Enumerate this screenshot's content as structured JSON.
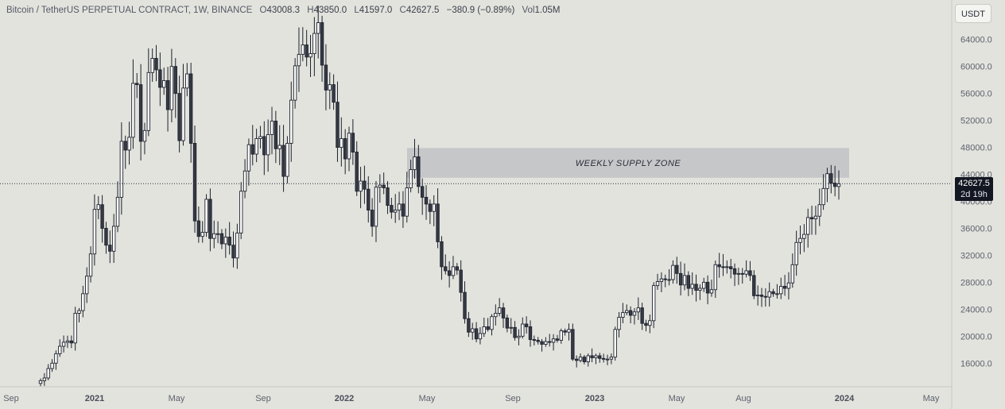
{
  "legend": {
    "symbol": "Bitcoin / TetherUS PERPETUAL CONTRACT, 1W, BINANCE",
    "o_label": "O",
    "o": "43008.3",
    "h_label": "H",
    "h": "43850.0",
    "l_label": "L",
    "l": "41597.0",
    "c_label": "C",
    "c": "42627.5",
    "change": "−380.9 (−0.89%)",
    "vol_label": "Vol",
    "vol": "1.05M"
  },
  "currency_button": "USDT",
  "price_badge": {
    "price": "42627.5",
    "countdown": "2d 19h"
  },
  "chart_data": {
    "type": "candlestick",
    "interval": "1W",
    "ylim": [
      12500,
      67500
    ],
    "y_ticks": [
      "16000.0",
      "20000.0",
      "24000.0",
      "28000.0",
      "32000.0",
      "36000.0",
      "40000.0",
      "44000.0",
      "48000.0",
      "52000.0",
      "56000.0",
      "60000.0",
      "64000.0"
    ],
    "x_ticks": [
      {
        "label": "Sep",
        "bold": false
      },
      {
        "label": "2021",
        "bold": true
      },
      {
        "label": "May",
        "bold": false
      },
      {
        "label": "Sep",
        "bold": false
      },
      {
        "label": "2022",
        "bold": true
      },
      {
        "label": "May",
        "bold": false
      },
      {
        "label": "Sep",
        "bold": false
      },
      {
        "label": "2023",
        "bold": true
      },
      {
        "label": "May",
        "bold": false
      },
      {
        "label": "Aug",
        "bold": false
      },
      {
        "label": "2024",
        "bold": true
      },
      {
        "label": "May",
        "bold": false
      }
    ],
    "supply_zone": {
      "label": "WEEKLY SUPPLY ZONE",
      "low": 43500,
      "high": 47900
    },
    "last_price": 42627.5,
    "colors": {
      "up_fill": "#ffffff",
      "down_fill": "#363a45",
      "outline": "#1e222d",
      "zone": "#c4c5c7",
      "background": "#e2e3dd"
    },
    "closes": [
      13400,
      13800,
      15200,
      16000,
      17400,
      18500,
      19100,
      19300,
      19000,
      23400,
      23800,
      26300,
      28900,
      32200,
      38800,
      39500,
      36000,
      33500,
      32600,
      36300,
      40600,
      48900,
      47600,
      49500,
      57500,
      57300,
      48900,
      50500,
      59100,
      61200,
      59500,
      56900,
      57900,
      53600,
      60000,
      56000,
      49000,
      56800,
      58900,
      48600,
      37100,
      34800,
      35400,
      40300,
      34500,
      35200,
      35200,
      33700,
      34700,
      33500,
      31600,
      35300,
      41500,
      44500,
      48400,
      47000,
      49300,
      49600,
      46900,
      49900,
      51900,
      47800,
      48300,
      43700,
      48600,
      55000,
      60100,
      61800,
      63200,
      61400,
      61900,
      64900,
      66500,
      60200,
      56500,
      57300,
      54700,
      48000,
      49300,
      46300,
      50100,
      47300,
      41500,
      43000,
      41800,
      38700,
      36300,
      42100,
      42400,
      42000,
      39400,
      38400,
      38700,
      39600,
      37800,
      42000,
      44700,
      46600,
      42200,
      40600,
      39600,
      38500,
      39600,
      34000,
      30300,
      29700,
      29000,
      30300,
      29800,
      26500,
      22600,
      20600,
      21100,
      19600,
      20400,
      21400,
      21000,
      22900,
      23400,
      24200,
      22700,
      21200,
      21300,
      19800,
      20000,
      21800,
      21400,
      19500,
      19400,
      19200,
      18800,
      19200,
      19100,
      19600,
      19400,
      20800,
      20600,
      21000,
      16600,
      16400,
      16900,
      16200,
      17100,
      16800,
      17100,
      16700,
      16600,
      16600,
      16900,
      21000,
      22800,
      23500,
      23800,
      23100,
      23600,
      24200,
      21900,
      21600,
      22300,
      27500,
      28100,
      28500,
      28400,
      28400,
      30500,
      29300,
      27600,
      29000,
      27100,
      27700,
      26800,
      27100,
      28000,
      26400,
      26900,
      30600,
      30300,
      30200,
      30300,
      30000,
      29200,
      29300,
      29200,
      29700,
      29000,
      26000,
      26100,
      25900,
      25800,
      26600,
      26300,
      26300,
      27400,
      27100,
      27900,
      30600,
      33900,
      34500,
      35100,
      37600,
      37400,
      37800,
      39500,
      41900,
      44100,
      42700,
      42200,
      42600
    ]
  }
}
